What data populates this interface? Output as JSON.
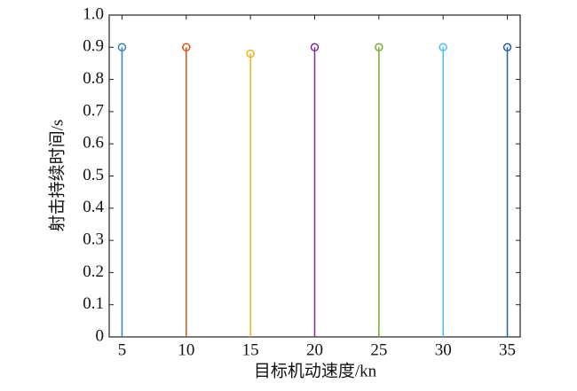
{
  "chart_data": {
    "type": "stem",
    "x_label": "目标机动速度/kn",
    "y_label": "射击持续时间/s",
    "x": [
      5,
      10,
      15,
      20,
      25,
      30,
      35
    ],
    "values": [
      0.9,
      0.9,
      0.88,
      0.9,
      0.9,
      0.9,
      0.9
    ],
    "colors": [
      "#3b7fbf",
      "#d95319",
      "#edb120",
      "#7e2f8e",
      "#77ac30",
      "#4dbeee",
      "#1f5f9f"
    ],
    "xlim": [
      4,
      36
    ],
    "ylim": [
      0,
      1
    ],
    "xticks": [
      5,
      10,
      15,
      20,
      25,
      30,
      35
    ],
    "yticks": [
      0,
      0.1,
      0.2,
      0.3,
      0.4,
      0.5,
      0.6,
      0.7,
      0.8,
      0.9,
      {
        "value": 1,
        "label": "1.0"
      }
    ]
  }
}
